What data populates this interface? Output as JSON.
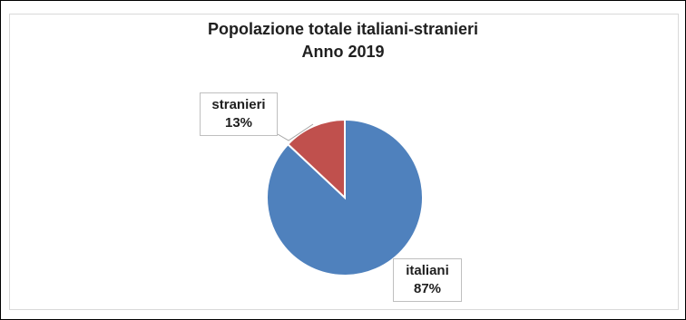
{
  "chart_data": {
    "type": "pie",
    "title": "Popolazione totale italiani-stranieri",
    "subtitle": "Anno 2019",
    "slices": [
      {
        "label": "italiani",
        "value": 87,
        "display": "87%",
        "color": "#4f81bd"
      },
      {
        "label": "stranieri",
        "value": 13,
        "display": "13%",
        "color": "#c0504d"
      }
    ],
    "start_angle_deg": 0,
    "direction": "clockwise",
    "legend": "none"
  }
}
